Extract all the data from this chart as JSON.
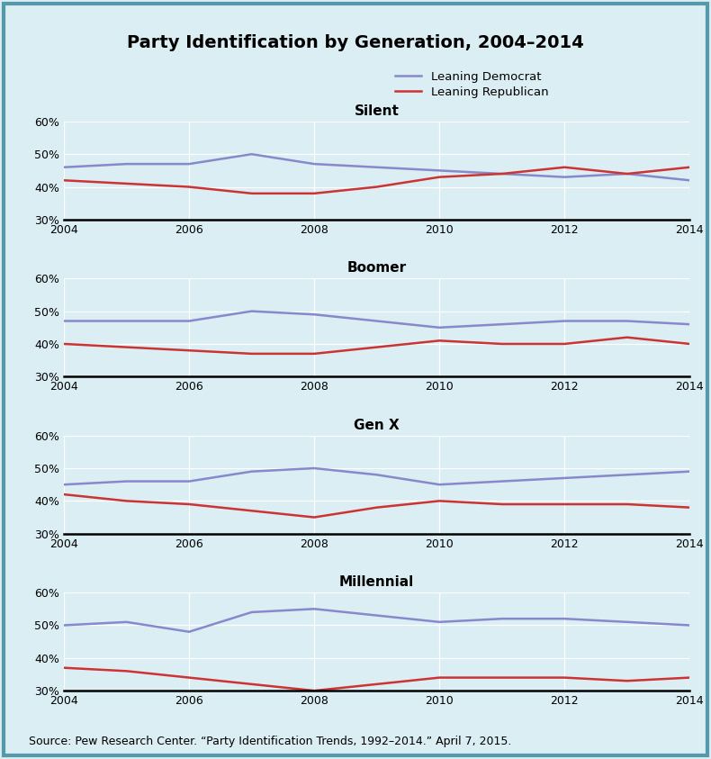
{
  "title": "Party Identification by Generation, 2004–2014",
  "source": "Source: Pew Research Center. “Party Identification Trends, 1992–2014.” April 7, 2015.",
  "years": [
    2004,
    2005,
    2006,
    2007,
    2008,
    2009,
    2010,
    2011,
    2012,
    2013,
    2014
  ],
  "panels": [
    {
      "label": "Silent",
      "dem": [
        46,
        47,
        47,
        50,
        47,
        46,
        45,
        44,
        43,
        44,
        42
      ],
      "rep": [
        42,
        41,
        40,
        38,
        38,
        40,
        43,
        44,
        46,
        44,
        46
      ]
    },
    {
      "label": "Boomer",
      "dem": [
        47,
        47,
        47,
        50,
        49,
        47,
        45,
        46,
        47,
        47,
        46
      ],
      "rep": [
        40,
        39,
        38,
        37,
        37,
        39,
        41,
        40,
        40,
        42,
        40
      ]
    },
    {
      "label": "Gen X",
      "dem": [
        45,
        46,
        46,
        49,
        50,
        48,
        45,
        46,
        47,
        48,
        49
      ],
      "rep": [
        42,
        40,
        39,
        37,
        35,
        38,
        40,
        39,
        39,
        39,
        38
      ]
    },
    {
      "label": "Millennial",
      "dem": [
        50,
        51,
        48,
        54,
        55,
        53,
        51,
        52,
        52,
        51,
        50
      ],
      "rep": [
        37,
        36,
        34,
        32,
        30,
        32,
        34,
        34,
        34,
        33,
        34
      ]
    }
  ],
  "ylim": [
    30,
    60
  ],
  "yticks": [
    30,
    40,
    50,
    60
  ],
  "ytick_labels": [
    "30%",
    "40%",
    "50%",
    "60%"
  ],
  "xticks": [
    2004,
    2006,
    2008,
    2010,
    2012,
    2014
  ],
  "xlim": [
    2004,
    2014
  ],
  "dem_color": "#8888cc",
  "rep_color": "#cc3333",
  "bg_color": "#daeef3",
  "panel_bg": "#daeef3",
  "line_width": 1.8,
  "title_fontsize": 14,
  "label_fontsize": 11,
  "tick_fontsize": 9,
  "source_fontsize": 9,
  "legend_fontsize": 9.5
}
